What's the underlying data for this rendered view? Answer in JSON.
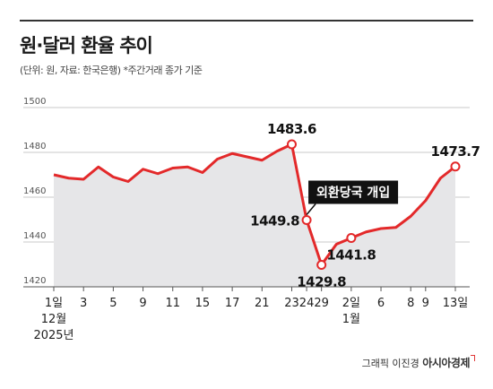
{
  "header": {
    "title": "원·달러 환율 추이",
    "subtitle": "(단위: 원, 자료: 한국은행) *주간거래 종가 기준"
  },
  "footer": {
    "credit_text": "그래픽 이진경",
    "brand": "아시아경제"
  },
  "colors": {
    "line": "#e3292a",
    "area": "#e6e6e8",
    "callout_bg": "#111111",
    "callout_text": "#ffffff"
  },
  "chart_data": {
    "type": "area",
    "title": "원·달러 환율 추이",
    "xlabel": "",
    "ylabel": "",
    "ylim": [
      1420,
      1500
    ],
    "yticks": [
      1420,
      1440,
      1460,
      1480,
      1500
    ],
    "grid": true,
    "x_tick_labels": [
      {
        "idx": 0,
        "label": "1일"
      },
      {
        "idx": 2,
        "label": "3"
      },
      {
        "idx": 4,
        "label": "5"
      },
      {
        "idx": 6,
        "label": "9"
      },
      {
        "idx": 8,
        "label": "11"
      },
      {
        "idx": 10,
        "label": "15"
      },
      {
        "idx": 12,
        "label": "17"
      },
      {
        "idx": 14,
        "label": "21"
      },
      {
        "idx": 16,
        "label": "23"
      },
      {
        "idx": 17,
        "label": "24"
      },
      {
        "idx": 18,
        "label": "29"
      },
      {
        "idx": 20,
        "label": "2일"
      },
      {
        "idx": 22,
        "label": "6"
      },
      {
        "idx": 24,
        "label": "8"
      },
      {
        "idx": 25,
        "label": "9"
      },
      {
        "idx": 27,
        "label": "13일"
      }
    ],
    "x_sub_labels": [
      {
        "idx": 0,
        "lines": [
          "12월",
          "2025년"
        ]
      },
      {
        "idx": 20,
        "lines": [
          "1월"
        ]
      }
    ],
    "values": [
      1470.0,
      1468.5,
      1468.0,
      1473.5,
      1469.0,
      1467.0,
      1472.5,
      1470.5,
      1473.0,
      1473.5,
      1471.0,
      1477.0,
      1479.5,
      1478.0,
      1476.5,
      1480.5,
      1483.6,
      1449.8,
      1429.8,
      1439.0,
      1441.8,
      1444.5,
      1446.0,
      1446.5,
      1451.5,
      1458.5,
      1468.5,
      1473.7
    ],
    "labeled_points": [
      {
        "idx": 16,
        "label": "1483.6",
        "pos": "above"
      },
      {
        "idx": 17,
        "label": "1449.8",
        "pos": "left"
      },
      {
        "idx": 18,
        "label": "1429.8",
        "pos": "below"
      },
      {
        "idx": 20,
        "label": "1441.8",
        "pos": "below"
      },
      {
        "idx": 27,
        "label": "1473.7",
        "pos": "above"
      }
    ],
    "annotations": [
      {
        "idx": 17,
        "text": "외환당국 개입"
      }
    ]
  }
}
